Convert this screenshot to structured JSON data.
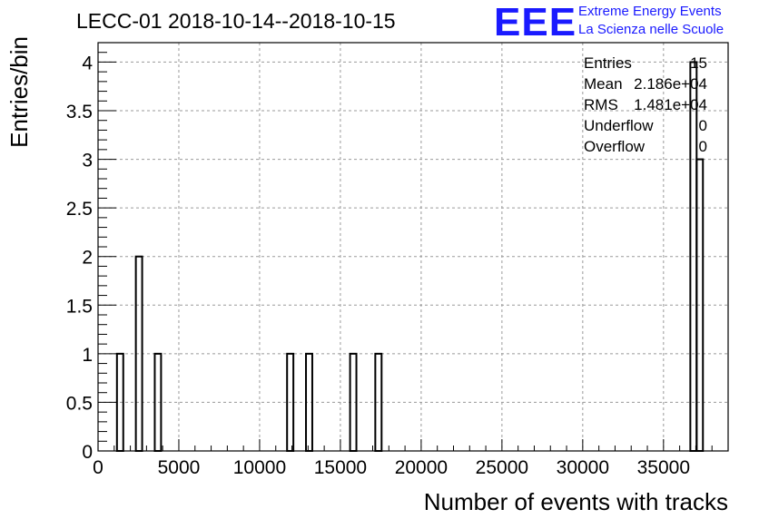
{
  "header": {
    "title": "LECC-01 2018-10-14--2018-10-15",
    "logo_text": "EEE",
    "logo_line1": "Extreme Energy Events",
    "logo_line2": "La Scienza nelle Scuole",
    "brand_color": "#1a1aff"
  },
  "stats": {
    "entries_label": "Entries",
    "entries_value": "15",
    "mean_label": "Mean",
    "mean_value": "2.186e+04",
    "rms_label": "RMS",
    "rms_value": "1.481e+04",
    "underflow_label": "Underflow",
    "underflow_value": "0",
    "overflow_label": "Overflow",
    "overflow_value": "0"
  },
  "chart_data": {
    "type": "bar",
    "title": "LECC-01 2018-10-14--2018-10-15",
    "xlabel": "Number of events with tracks",
    "ylabel": "Entries/bin",
    "xlim": [
      0,
      39000
    ],
    "ylim": [
      0,
      4.2
    ],
    "grid": true,
    "x_ticks": [
      "0",
      "5000",
      "10000",
      "15000",
      "20000",
      "25000",
      "30000",
      "35000"
    ],
    "y_ticks": [
      "0",
      "0.5",
      "1",
      "1.5",
      "2",
      "2.5",
      "3",
      "3.5",
      "4"
    ],
    "bin_width": 390,
    "bins": [
      {
        "x_start": 1170,
        "value": 1
      },
      {
        "x_start": 2340,
        "value": 2
      },
      {
        "x_start": 3510,
        "value": 1
      },
      {
        "x_start": 11700,
        "value": 1
      },
      {
        "x_start": 12870,
        "value": 1
      },
      {
        "x_start": 15600,
        "value": 1
      },
      {
        "x_start": 17160,
        "value": 1
      },
      {
        "x_start": 36660,
        "value": 4
      },
      {
        "x_start": 37050,
        "value": 3
      }
    ]
  }
}
